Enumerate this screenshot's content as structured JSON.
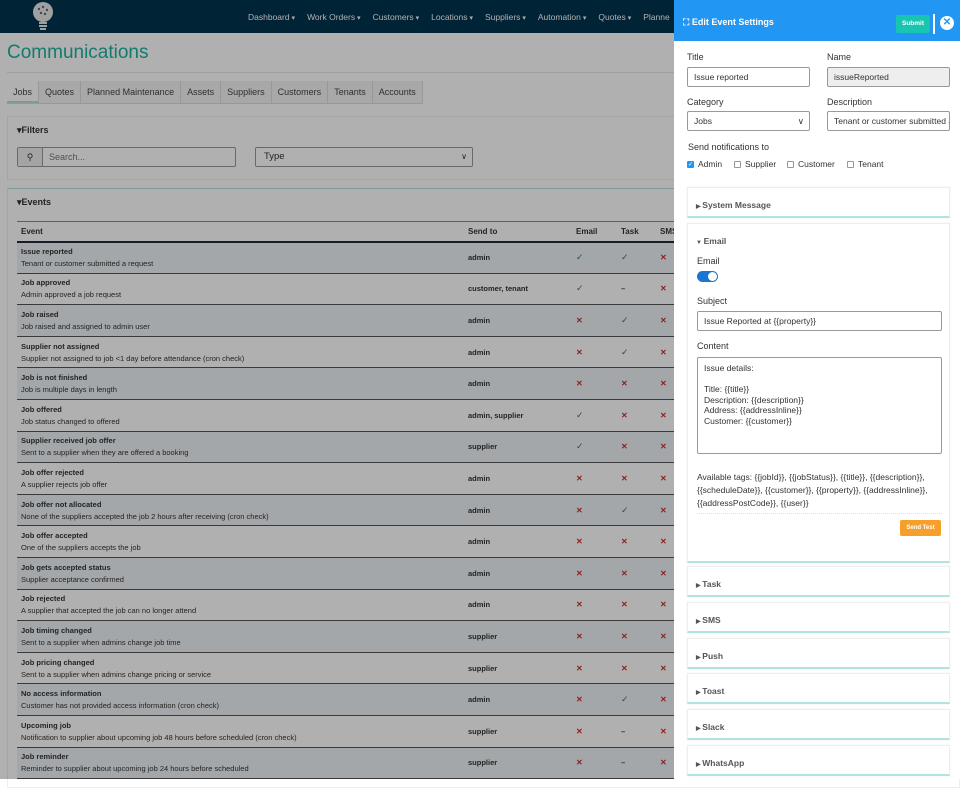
{
  "nav": {
    "items": [
      "Dashboard",
      "Work Orders",
      "Customers",
      "Locations",
      "Suppliers",
      "Automation",
      "Quotes",
      "Planne"
    ]
  },
  "page": {
    "title": "Communications"
  },
  "tabs": [
    "Jobs",
    "Quotes",
    "Planned Maintenance",
    "Assets",
    "Suppliers",
    "Customers",
    "Tenants",
    "Accounts"
  ],
  "active_tab": "Jobs",
  "filters": {
    "title": "Filters",
    "search_placeholder": "Search...",
    "type_value": "Type"
  },
  "events": {
    "title": "Events",
    "columns": [
      "Event",
      "Send to",
      "Email",
      "Task",
      "SMS"
    ],
    "rows": [
      {
        "name": "Issue reported",
        "desc": "Tenant or customer submitted a request",
        "send_to": "admin",
        "email": "yes",
        "task": "yes",
        "sms": "no"
      },
      {
        "name": "Job approved",
        "desc": "Admin approved a job request",
        "send_to": "customer, tenant",
        "email": "yes",
        "task": "na",
        "sms": "no"
      },
      {
        "name": "Job raised",
        "desc": "Job raised and assigned to admin user",
        "send_to": "admin",
        "email": "no",
        "task": "yes",
        "sms": "no"
      },
      {
        "name": "Supplier not assigned",
        "desc": "Supplier not assigned to job <1 day before attendance (cron check)",
        "send_to": "admin",
        "email": "no",
        "task": "yes",
        "sms": "no"
      },
      {
        "name": "Job is not finished",
        "desc": "Job is multiple days in length",
        "send_to": "admin",
        "email": "no",
        "task": "no",
        "sms": "no"
      },
      {
        "name": "Job offered",
        "desc": "Job status changed to offered",
        "send_to": "admin, supplier",
        "email": "yes",
        "task": "no",
        "sms": "no"
      },
      {
        "name": "Supplier received job offer",
        "desc": "Sent to a supplier when they are offered a booking",
        "send_to": "supplier",
        "email": "yes",
        "task": "no",
        "sms": "no"
      },
      {
        "name": "Job offer rejected",
        "desc": "A supplier rejects job offer",
        "send_to": "admin",
        "email": "no",
        "task": "no",
        "sms": "no"
      },
      {
        "name": "Job offer not allocated",
        "desc": "None of the suppliers accepted the job 2 hours after receiving (cron check)",
        "send_to": "admin",
        "email": "no",
        "task": "yes",
        "sms": "no"
      },
      {
        "name": "Job offer accepted",
        "desc": "One of the suppliers accepts the job",
        "send_to": "admin",
        "email": "no",
        "task": "no",
        "sms": "no"
      },
      {
        "name": "Job gets accepted status",
        "desc": "Supplier acceptance confirmed",
        "send_to": "admin",
        "email": "no",
        "task": "no",
        "sms": "no"
      },
      {
        "name": "Job rejected",
        "desc": "A supplier that accepted the job can no longer attend",
        "send_to": "admin",
        "email": "no",
        "task": "no",
        "sms": "no"
      },
      {
        "name": "Job timing changed",
        "desc": "Sent to a supplier when admins change job time",
        "send_to": "supplier",
        "email": "no",
        "task": "no",
        "sms": "no"
      },
      {
        "name": "Job pricing changed",
        "desc": "Sent to a supplier when admins change pricing or service",
        "send_to": "supplier",
        "email": "no",
        "task": "no",
        "sms": "no"
      },
      {
        "name": "No access information",
        "desc": "Customer has not provided access information (cron check)",
        "send_to": "admin",
        "email": "no",
        "task": "yes",
        "sms": "no"
      },
      {
        "name": "Upcoming job",
        "desc": "Notification to supplier about upcoming job 48 hours before scheduled (cron check)",
        "send_to": "supplier",
        "email": "no",
        "task": "na",
        "sms": "no"
      },
      {
        "name": "Job reminder",
        "desc": "Reminder to supplier about upcoming job 24 hours before scheduled",
        "send_to": "supplier",
        "email": "no",
        "task": "na",
        "sms": "no"
      }
    ]
  },
  "panel": {
    "title": "Edit Event Settings",
    "submit": "Submit",
    "title_label": "Title",
    "title_value": "Issue reported",
    "name_label": "Name",
    "name_value": "issueReported",
    "category_label": "Category",
    "category_value": "Jobs",
    "description_label": "Description",
    "description_value": "Tenant or customer submitted a request",
    "send_label": "Send notifications to",
    "recipients": [
      {
        "label": "Admin",
        "checked": true
      },
      {
        "label": "Supplier",
        "checked": false
      },
      {
        "label": "Customer",
        "checked": false
      },
      {
        "label": "Tenant",
        "checked": false
      }
    ],
    "sections": [
      "System Message",
      "Email",
      "Task",
      "SMS",
      "Push",
      "Toast",
      "Slack",
      "WhatsApp"
    ],
    "email": {
      "toggle_label": "Email",
      "enabled": true,
      "subject_label": "Subject",
      "subject_value": "Issue Reported at {{property}}",
      "content_label": "Content",
      "content_value": "Issue details:\n\nTitle: {{title}}\nDescription: {{description}}\nAddress: {{addressInline}}\nCustomer: {{customer}}",
      "tags": "Available tags: {{jobId}}, {{jobStatus}}, {{title}}, {{description}}, {{scheduleDate}}, {{customer}}, {{property}}, {{addressInline}}, {{addressPostCode}}, {{user}}",
      "send_test": "Send Test"
    }
  },
  "colors": {
    "header": "#00334f",
    "accent": "#1bb39e",
    "panel_header": "#2196f3",
    "submit": "#19c4b0",
    "send_test": "#f6a02c",
    "no": "#d32f2f"
  }
}
